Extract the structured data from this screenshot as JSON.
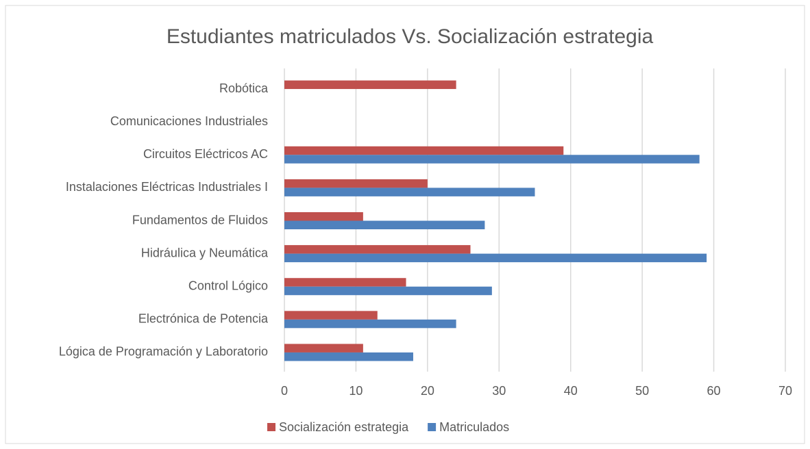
{
  "chart_data": {
    "type": "hbar",
    "title": "Estudiantes matriculados Vs. Socialización estrategia",
    "categories": [
      "Lógica de Programación y Laboratorio",
      "Electrónica de Potencia",
      "Control Lógico",
      "Hidráulica y Neumática",
      "Fundamentos de Fluidos",
      "Instalaciones Eléctricas Industriales I",
      "Circuitos Eléctricos AC",
      "Comunicaciones Industriales",
      "Robótica"
    ],
    "series": [
      {
        "name": "Socialización estrategia",
        "color": "#c0504d",
        "values": [
          11,
          13,
          17,
          26,
          11,
          20,
          39,
          null,
          24
        ]
      },
      {
        "name": "Matriculados",
        "color": "#4f81bd",
        "values": [
          18,
          24,
          29,
          59,
          28,
          35,
          58,
          null,
          null
        ]
      }
    ],
    "xlim": [
      0,
      70
    ],
    "xticks": [
      0,
      10,
      20,
      30,
      40,
      50,
      60,
      70
    ],
    "grid": true,
    "legend": "bottom"
  }
}
